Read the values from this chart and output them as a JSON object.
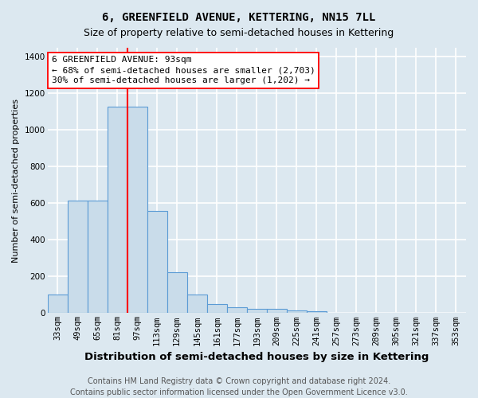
{
  "title": "6, GREENFIELD AVENUE, KETTERING, NN15 7LL",
  "subtitle": "Size of property relative to semi-detached houses in Kettering",
  "xlabel": "Distribution of semi-detached houses by size in Kettering",
  "ylabel": "Number of semi-detached properties",
  "bins": [
    "33sqm",
    "49sqm",
    "65sqm",
    "81sqm",
    "97sqm",
    "113sqm",
    "129sqm",
    "145sqm",
    "161sqm",
    "177sqm",
    "193sqm",
    "209sqm",
    "225sqm",
    "241sqm",
    "257sqm",
    "273sqm",
    "289sqm",
    "305sqm",
    "321sqm",
    "337sqm",
    "353sqm"
  ],
  "values": [
    100,
    615,
    615,
    1130,
    1130,
    560,
    225,
    100,
    50,
    30,
    25,
    25,
    15,
    10,
    0,
    0,
    0,
    0,
    0,
    0,
    0
  ],
  "bar_color": "#c9dcea",
  "bar_edge_color": "#5b9bd5",
  "property_line_x": 3.5,
  "property_line_color": "red",
  "annotation_line1": "6 GREENFIELD AVENUE: 93sqm",
  "annotation_line2": "← 68% of semi-detached houses are smaller (2,703)",
  "annotation_line3": "30% of semi-detached houses are larger (1,202) →",
  "annotation_box_color": "white",
  "annotation_box_edge_color": "red",
  "ylim": [
    0,
    1450
  ],
  "yticks": [
    0,
    200,
    400,
    600,
    800,
    1000,
    1200,
    1400
  ],
  "footer1": "Contains HM Land Registry data © Crown copyright and database right 2024.",
  "footer2": "Contains public sector information licensed under the Open Government Licence v3.0.",
  "bg_color": "#dce8f0",
  "plot_bg_color": "#dce8f0",
  "grid_color": "#ffffff",
  "title_fontsize": 10,
  "subtitle_fontsize": 9,
  "xlabel_fontsize": 9.5,
  "ylabel_fontsize": 8,
  "annot_fontsize": 8,
  "tick_fontsize": 7.5,
  "footer_fontsize": 7
}
